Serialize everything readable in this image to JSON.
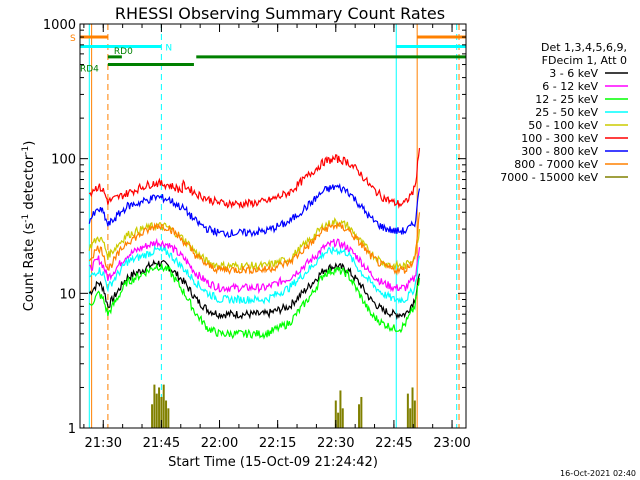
{
  "chart_data": {
    "type": "line",
    "title": "RHESSI Observing Summary Count Rates",
    "xlabel": "Start Time (15-Oct-09 21:24:42)",
    "ylabel": "Count Rate (s",
    "ylabel_sup1": "-1",
    "ylabel_mid": " detector",
    "ylabel_sup2": "-1",
    "ylabel_end": ")",
    "timestamp": "16-Oct-2021 02:40",
    "yscale": "log",
    "xlim": [
      21.4,
      23.06
    ],
    "ylim": [
      1,
      1000
    ],
    "x_ticks": [
      {
        "t": 21.5,
        "label": "21:30"
      },
      {
        "t": 21.75,
        "label": "21:45"
      },
      {
        "t": 22.0,
        "label": "22:00"
      },
      {
        "t": 22.25,
        "label": "22:15"
      },
      {
        "t": 22.5,
        "label": "22:30"
      },
      {
        "t": 22.75,
        "label": "22:45"
      },
      {
        "t": 23.0,
        "label": "23:00"
      }
    ],
    "y_ticks": [
      {
        "v": 1,
        "label": "1"
      },
      {
        "v": 10,
        "label": "10"
      },
      {
        "v": 100,
        "label": "100"
      },
      {
        "v": 1000,
        "label": "1000"
      }
    ],
    "legend_header": [
      "Det 1,3,4,5,6,9,",
      "FDecim 1, Att 0"
    ],
    "series": [
      {
        "name": "3 - 6 keV",
        "color": "#000000",
        "x": [
          21.44,
          21.48,
          21.5,
          21.52,
          21.6,
          21.67,
          21.73,
          21.78,
          21.85,
          21.9,
          21.95,
          22.0,
          22.1,
          22.2,
          22.3,
          22.4,
          22.45,
          22.5,
          22.55,
          22.6,
          22.65,
          22.7,
          22.75,
          22.78,
          22.8,
          22.84,
          22.86
        ],
        "y": [
          10,
          12,
          11,
          8,
          13,
          15,
          17,
          16,
          12,
          9,
          7.5,
          7,
          7,
          7,
          8,
          12,
          15,
          16,
          15,
          12,
          9,
          7.5,
          7,
          7,
          7,
          9,
          14
        ]
      },
      {
        "name": "6 - 12 keV",
        "color": "#ff00ff",
        "x": [
          21.44,
          21.48,
          21.5,
          21.52,
          21.6,
          21.67,
          21.73,
          21.78,
          21.85,
          21.9,
          21.95,
          22.0,
          22.1,
          22.2,
          22.3,
          22.4,
          22.45,
          22.5,
          22.55,
          22.6,
          22.65,
          22.7,
          22.75,
          22.78,
          22.8,
          22.84,
          22.86
        ],
        "y": [
          15,
          18,
          16,
          13,
          19,
          22,
          24,
          23,
          18,
          14,
          12,
          11,
          11,
          11,
          13,
          18,
          22,
          24,
          22,
          18,
          14,
          12,
          11,
          11,
          11,
          13,
          22
        ]
      },
      {
        "name": "12 - 25 keV",
        "color": "#00ff00",
        "x": [
          21.44,
          21.48,
          21.5,
          21.52,
          21.6,
          21.67,
          21.73,
          21.78,
          21.85,
          21.9,
          21.95,
          22.0,
          22.1,
          22.2,
          22.3,
          22.4,
          22.45,
          22.5,
          22.55,
          22.6,
          22.65,
          22.7,
          22.75,
          22.78,
          22.8,
          22.84,
          22.86
        ],
        "y": [
          8,
          10,
          9,
          7,
          12,
          14,
          16,
          15,
          10,
          7,
          5.5,
          5,
          5,
          5,
          6,
          10,
          14,
          15,
          14,
          10,
          7,
          6,
          5.5,
          5.5,
          6,
          8,
          13
        ]
      },
      {
        "name": "25 - 50 keV",
        "color": "#00ffff",
        "x": [
          21.44,
          21.48,
          21.5,
          21.52,
          21.6,
          21.67,
          21.73,
          21.78,
          21.85,
          21.9,
          21.95,
          22.0,
          22.1,
          22.2,
          22.3,
          22.4,
          22.45,
          22.5,
          22.55,
          22.6,
          22.65,
          22.7,
          22.75,
          22.78,
          22.8,
          22.84,
          22.86
        ],
        "y": [
          13,
          15,
          14,
          11,
          17,
          19,
          21,
          20,
          15,
          12,
          10,
          9,
          9,
          9,
          11,
          16,
          20,
          21,
          20,
          15,
          12,
          10,
          9,
          9,
          9,
          11,
          19
        ]
      },
      {
        "name": "50 - 100 keV",
        "color": "#cccc00",
        "x": [
          21.44,
          21.48,
          21.5,
          21.52,
          21.6,
          21.67,
          21.73,
          21.78,
          21.85,
          21.9,
          21.95,
          22.0,
          22.1,
          22.2,
          22.3,
          22.4,
          22.45,
          22.5,
          22.55,
          22.6,
          22.65,
          22.7,
          22.75,
          22.78,
          22.8,
          22.84,
          22.86
        ],
        "y": [
          22,
          26,
          24,
          19,
          27,
          30,
          32,
          31,
          25,
          20,
          17,
          16,
          16,
          16,
          18,
          26,
          32,
          34,
          32,
          25,
          20,
          17,
          16,
          16,
          16,
          19,
          30
        ]
      },
      {
        "name": "100 - 300 keV",
        "color": "#ff0000",
        "x": [
          21.44,
          21.46,
          21.48,
          21.5,
          21.52,
          21.6,
          21.67,
          21.72,
          21.78,
          21.84,
          21.84,
          21.9,
          21.95,
          22.0,
          22.1,
          22.2,
          22.3,
          22.4,
          22.45,
          22.5,
          22.55,
          22.6,
          22.65,
          22.7,
          22.75,
          22.78,
          22.8,
          22.84,
          22.86
        ],
        "y": [
          55,
          60,
          62,
          58,
          48,
          55,
          62,
          66,
          64,
          58,
          65,
          55,
          50,
          47,
          46,
          48,
          56,
          80,
          95,
          100,
          95,
          80,
          62,
          52,
          47,
          46,
          47,
          60,
          120
        ]
      },
      {
        "name": "300 - 800 keV",
        "color": "#0000ff",
        "x": [
          21.44,
          21.48,
          21.5,
          21.52,
          21.6,
          21.67,
          21.73,
          21.78,
          21.85,
          21.9,
          21.95,
          22.0,
          22.1,
          22.2,
          22.3,
          22.4,
          22.45,
          22.5,
          22.55,
          22.6,
          22.65,
          22.7,
          22.75,
          22.78,
          22.8,
          22.84,
          22.86
        ],
        "y": [
          35,
          42,
          40,
          32,
          44,
          48,
          52,
          50,
          42,
          34,
          30,
          28,
          28,
          29,
          34,
          48,
          58,
          62,
          58,
          46,
          36,
          31,
          29,
          29,
          29,
          33,
          60
        ]
      },
      {
        "name": "800 - 7000 keV",
        "color": "#ff8000",
        "x": [
          21.44,
          21.48,
          21.5,
          21.52,
          21.6,
          21.67,
          21.73,
          21.78,
          21.85,
          21.9,
          21.95,
          22.0,
          22.1,
          22.2,
          22.3,
          22.4,
          22.45,
          22.5,
          22.55,
          22.6,
          22.65,
          22.7,
          22.75,
          22.78,
          22.8,
          22.84,
          22.86
        ],
        "y": [
          18,
          22,
          20,
          15,
          24,
          28,
          32,
          31,
          24,
          19,
          16,
          15,
          15,
          15,
          17,
          24,
          30,
          32,
          30,
          24,
          19,
          16,
          15,
          15,
          15,
          18,
          40
        ]
      },
      {
        "name": "7000 - 15000 keV",
        "color": "#808000",
        "x": [
          21.71,
          21.72,
          21.73,
          21.74,
          21.75,
          21.76,
          21.77,
          21.78,
          22.5,
          22.51,
          22.52,
          22.53,
          22.6,
          22.61,
          22.81,
          22.82,
          22.83,
          22.84
        ],
        "y": [
          1.5,
          2.1,
          1.8,
          2.0,
          1.7,
          2.1,
          1.6,
          1.4,
          1.6,
          1.3,
          1.9,
          1.4,
          1.5,
          1.7,
          1.8,
          1.4,
          2.0,
          1.6
        ]
      }
    ],
    "state_bars": [
      {
        "label": "S",
        "color": "#ff8000",
        "segments": [
          [
            21.4,
            21.52
          ],
          [
            22.85,
            23.06
          ]
        ],
        "level": 800
      },
      {
        "label": "N",
        "color": "#00ffff",
        "segments": [
          [
            21.4,
            21.75
          ],
          [
            22.76,
            23.06
          ]
        ],
        "level": 680
      },
      {
        "label": "RD0",
        "color": "#008000",
        "segments": [
          [
            21.52,
            21.58
          ],
          [
            21.9,
            23.06
          ]
        ],
        "level": 570
      },
      {
        "label": "RD4",
        "color": "#008000",
        "segments": [
          [
            21.52,
            21.89
          ]
        ],
        "level": 500
      }
    ],
    "vlines": [
      {
        "t": 21.44,
        "color": "#00ffff",
        "style": "solid"
      },
      {
        "t": 21.45,
        "color": "#ff8000",
        "style": "solid"
      },
      {
        "t": 21.52,
        "color": "#ff8000",
        "style": "dashed"
      },
      {
        "t": 21.75,
        "color": "#00ffff",
        "style": "dashed"
      },
      {
        "t": 22.76,
        "color": "#00ffff",
        "style": "solid"
      },
      {
        "t": 22.85,
        "color": "#ff8000",
        "style": "solid"
      },
      {
        "t": 23.02,
        "color": "#00ffff",
        "style": "dashed"
      },
      {
        "t": 23.03,
        "color": "#ff8000",
        "style": "dashed"
      }
    ]
  }
}
